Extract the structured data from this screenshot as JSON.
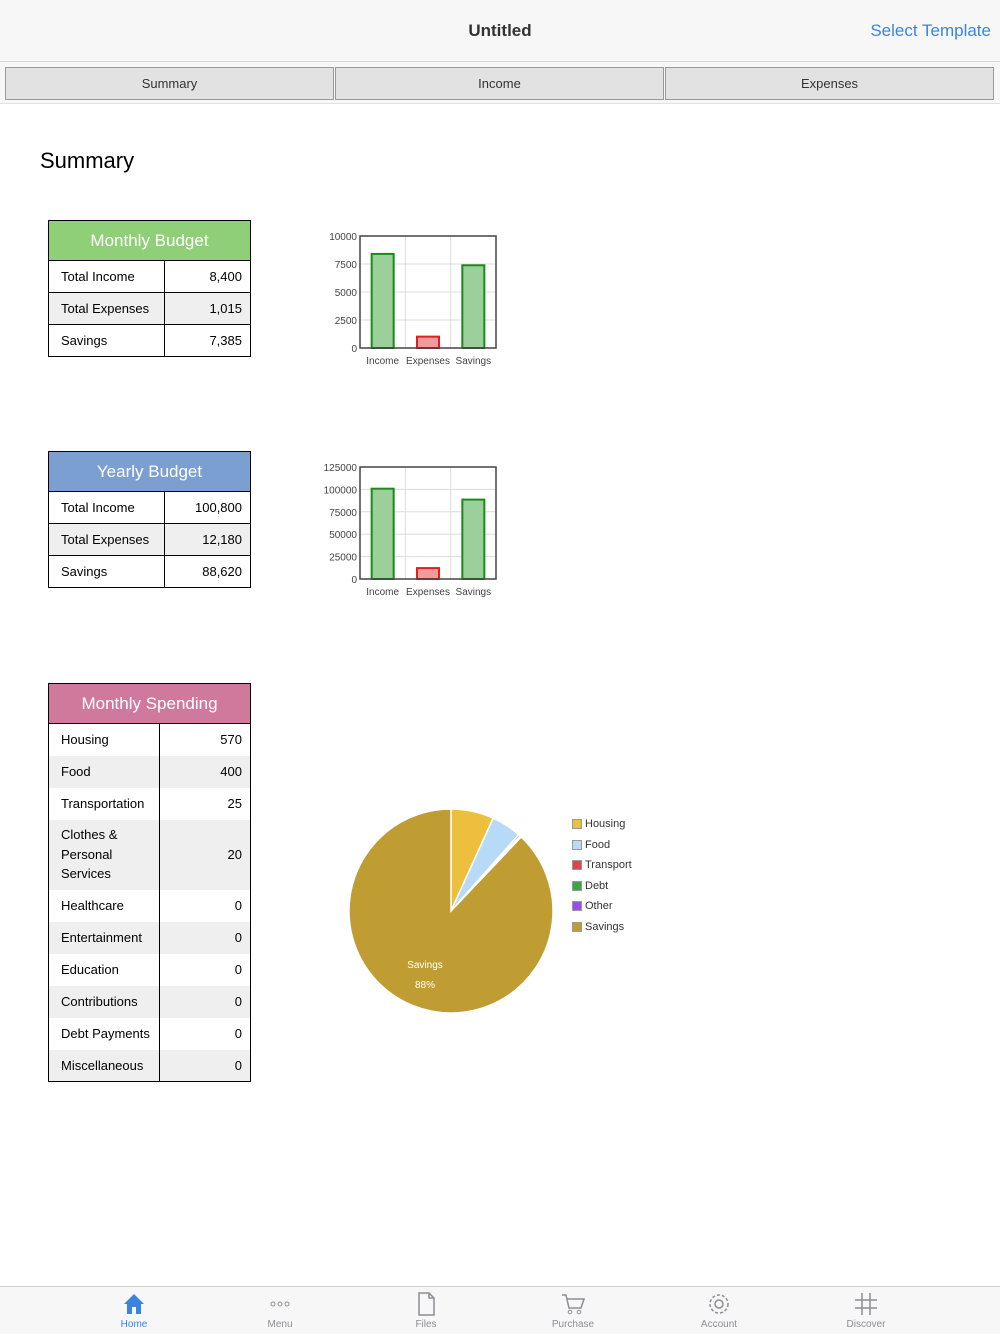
{
  "navbar": {
    "title": "Untitled",
    "action": "Select Template"
  },
  "segments": [
    "Summary",
    "Income",
    "Expenses"
  ],
  "page_title": "Summary",
  "monthly_budget": {
    "title": "Monthly Budget",
    "header_color": "#8fcf78",
    "rows": [
      {
        "label": "Total Income",
        "value": "8,400"
      },
      {
        "label": "Total Expenses",
        "value": "1,015"
      },
      {
        "label": "Savings",
        "value": "7,385"
      }
    ]
  },
  "yearly_budget": {
    "title": "Yearly Budget",
    "header_color": "#7b9fd0",
    "rows": [
      {
        "label": "Total Income",
        "value": "100,800"
      },
      {
        "label": "Total Expenses",
        "value": "12,180"
      },
      {
        "label": "Savings",
        "value": "88,620"
      }
    ]
  },
  "monthly_spending": {
    "title": "Monthly Spending",
    "header_color": "#cf7a9c",
    "rows": [
      {
        "label": "Housing",
        "value": "570"
      },
      {
        "label": "Food",
        "value": "400"
      },
      {
        "label": "Transportation",
        "value": "25"
      },
      {
        "label": "Clothes & Personal Services",
        "value": "20"
      },
      {
        "label": "Healthcare",
        "value": "0"
      },
      {
        "label": "Entertainment",
        "value": "0"
      },
      {
        "label": "Education",
        "value": "0"
      },
      {
        "label": "Contributions",
        "value": "0"
      },
      {
        "label": "Debt Payments",
        "value": "0"
      },
      {
        "label": "Miscellaneous",
        "value": "0"
      }
    ]
  },
  "chart_data": [
    {
      "type": "bar",
      "categories": [
        "Income",
        "Expenses",
        "Savings"
      ],
      "values": [
        8400,
        1015,
        7385
      ],
      "colors": [
        "#9ccf9c",
        "#f39a9a",
        "#9ccf9c"
      ],
      "stroke_colors": [
        "#1a8a1a",
        "#e02020",
        "#1a8a1a"
      ],
      "yticks": [
        0,
        2500,
        5000,
        7500,
        10000
      ],
      "ylim": [
        0,
        10000
      ],
      "grid": true
    },
    {
      "type": "bar",
      "categories": [
        "Income",
        "Expenses",
        "Savings"
      ],
      "values": [
        100800,
        12180,
        88620
      ],
      "colors": [
        "#9ccf9c",
        "#f39a9a",
        "#9ccf9c"
      ],
      "stroke_colors": [
        "#1a8a1a",
        "#e02020",
        "#1a8a1a"
      ],
      "yticks": [
        0,
        25000,
        50000,
        75000,
        100000,
        125000
      ],
      "ylim": [
        0,
        125000
      ],
      "grid": true
    },
    {
      "type": "pie",
      "labels": [
        "Housing",
        "Food",
        "Transport",
        "Debt",
        "Other",
        "Savings"
      ],
      "values": [
        570,
        400,
        25,
        0,
        20,
        7385
      ],
      "colors": [
        "#ecc03e",
        "#b7daf7",
        "#d9484f",
        "#3aa842",
        "#9b4dea",
        "#bf9d32"
      ],
      "data_label": {
        "text": "Savings",
        "percent": "88%"
      },
      "legend": "right"
    }
  ],
  "bottom_tabs": [
    {
      "label": "Home",
      "icon": "home-icon",
      "active": true
    },
    {
      "label": "Menu",
      "icon": "more-icon",
      "active": false
    },
    {
      "label": "Files",
      "icon": "file-icon",
      "active": false
    },
    {
      "label": "Purchase",
      "icon": "cart-icon",
      "active": false
    },
    {
      "label": "Account",
      "icon": "gear-icon",
      "active": false
    },
    {
      "label": "Discover",
      "icon": "hash-icon",
      "active": false
    }
  ]
}
